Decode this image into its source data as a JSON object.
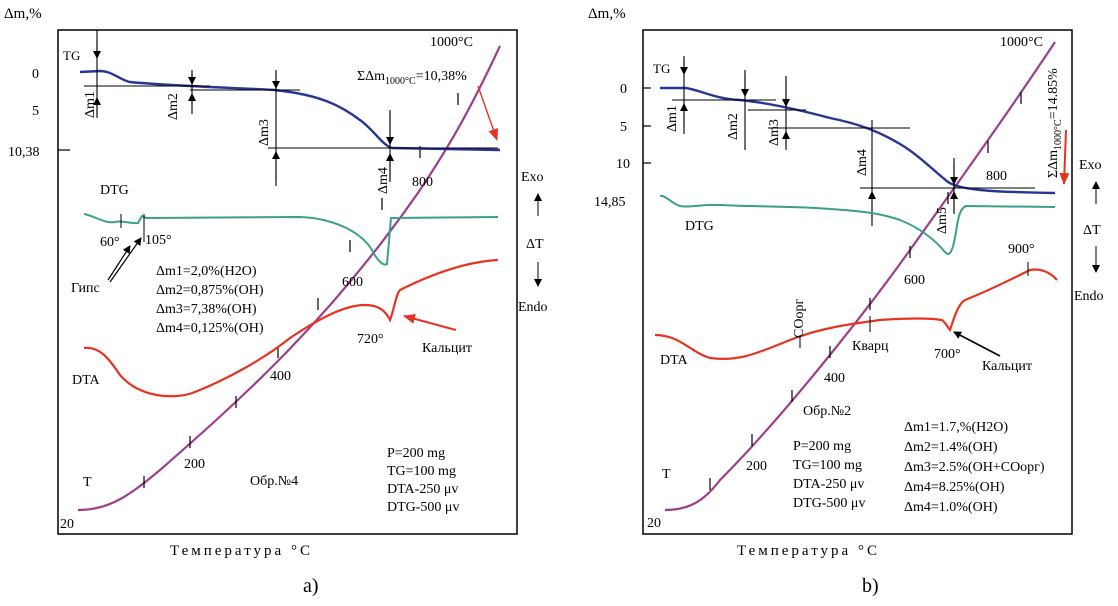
{
  "chart_data": [
    {
      "type": "line",
      "panel": "a)",
      "sample": "Обр.№4",
      "x_caption": "Температура °С",
      "y_caption": "Δm,%",
      "tg_ticks": [
        "0",
        "5",
        "10,38"
      ],
      "max_temp_label": "1000°С",
      "total_loss": "ΣΔm",
      "total_loss_sub": "1000°С",
      "total_loss_value": "=10,38%",
      "curve_labels": {
        "tg": "TG",
        "dtg": "DTG",
        "dta": "DTA",
        "t": "T"
      },
      "dm_markers": [
        "Δm1",
        "Δm2",
        "Δm3",
        "Δm4"
      ],
      "temp_ticks": [
        "20",
        "200",
        "400",
        "600",
        "800"
      ],
      "exo": "Exo",
      "endo": "Endo",
      "dt": "ΔT",
      "annotations": {
        "p60": "60°",
        "p105": "105°",
        "gips": "Гипс",
        "p720": "720°",
        "calcite": "Кальцит"
      },
      "losses": [
        "Δm1=2,0%(H2O)",
        "Δm2=0,875%(OH)",
        "Δm3=7,38%(OH)",
        "Δm4=0,125%(OH)"
      ],
      "conditions": [
        "P=200 mg",
        "TG=100 mg",
        "DTA-250 μv",
        "DTG-500 μv"
      ],
      "tg_curve": {
        "temp": [
          20,
          105,
          400,
          720,
          1000
        ],
        "mass_loss_pct": [
          0,
          2.0,
          2.875,
          10.255,
          10.38
        ]
      },
      "colors": {
        "tg": "#283593",
        "dtg": "#3aa088",
        "dta": "#e53424",
        "t": "#9b3f8d",
        "arrow": "#e53424"
      }
    },
    {
      "type": "line",
      "panel": "b)",
      "sample": "Обр.№2",
      "x_caption": "Температура °С",
      "y_caption": "Δm,%",
      "tg_ticks": [
        "0",
        "5",
        "10",
        "14,85"
      ],
      "max_temp_label": "1000°С",
      "total_loss": "ΣΔm",
      "total_loss_sub": "1000°С",
      "total_loss_value": "=14.85%",
      "curve_labels": {
        "tg": "TG",
        "dtg": "DTG",
        "dta": "DTA",
        "t": "T"
      },
      "dm_markers": [
        "Δm1",
        "Δm2",
        "Δm3",
        "Δm4",
        "Δm5"
      ],
      "temp_ticks": [
        "20",
        "200",
        "400",
        "600",
        "800"
      ],
      "exo": "Exo",
      "endo": "Endo",
      "dt": "ΔT",
      "annotations": {
        "corg": "СОорг",
        "quartz": "Кварц",
        "p700": "700°",
        "p900": "900°",
        "calcite": "Кальцит"
      },
      "losses": [
        "Δm1=1.7,%(H2O)",
        "Δm2=1.4%(OH)",
        "Δm3=2.5%(OH+СОорг)",
        "Δm4=8.25%(OH)",
        "Δm4=1.0%(OH)"
      ],
      "conditions": [
        "P=200 mg",
        "TG=100 mg",
        "DTA-250 μv",
        "DTG-500 μv"
      ],
      "tg_curve": {
        "temp": [
          20,
          200,
          400,
          600,
          700,
          1000
        ],
        "mass_loss_pct": [
          0,
          1.7,
          3.1,
          5.6,
          13.85,
          14.85
        ]
      },
      "colors": {
        "tg": "#283593",
        "dtg": "#3aa088",
        "dta": "#e53424",
        "t": "#9b3f8d",
        "arrow": "#e53424"
      }
    }
  ]
}
